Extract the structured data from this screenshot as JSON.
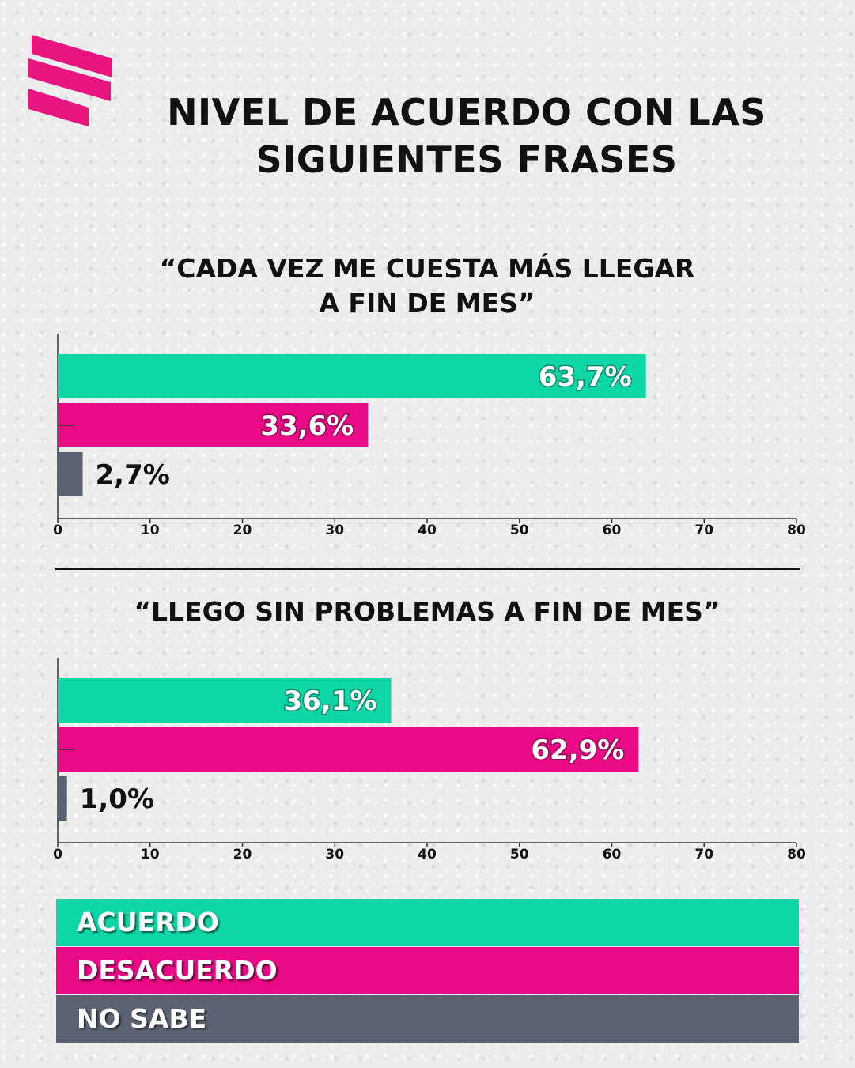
{
  "header": {
    "title_line1": "NIVEL DE ACUERDO CON LAS",
    "title_line2": "SIGUIENTES FRASES",
    "logo_icon": "stripes-logo-icon",
    "logo_color": "#e8157e"
  },
  "colors": {
    "acuerdo": "#0fd6a6",
    "desacuerdo": "#ea0a85",
    "no_sabe": "#5b6272"
  },
  "chart_data": [
    {
      "type": "bar",
      "orientation": "horizontal",
      "title": "“CADA VEZ ME CUESTA MÁS LLEGAR A FIN DE MES”",
      "title_line1": "“CADA VEZ ME CUESTA MÁS LLEGAR",
      "title_line2": "A FIN DE MES”",
      "categories": [
        "ACUERDO",
        "DESACUERDO",
        "NO SABE"
      ],
      "values": [
        63.7,
        33.6,
        2.7
      ],
      "labels": [
        "63,7%",
        "33,6%",
        "2,7%"
      ],
      "xlim": [
        0,
        80
      ],
      "xticks": [
        "0",
        "10",
        "20",
        "30",
        "40",
        "50",
        "60",
        "70",
        "80"
      ]
    },
    {
      "type": "bar",
      "orientation": "horizontal",
      "title": "“LLEGO SIN PROBLEMAS A FIN DE MES”",
      "categories": [
        "ACUERDO",
        "DESACUERDO",
        "NO SABE"
      ],
      "values": [
        36.1,
        62.9,
        1.0
      ],
      "labels": [
        "36,1%",
        "62,9%",
        "1,0%"
      ],
      "xlim": [
        0,
        80
      ],
      "xticks": [
        "0",
        "10",
        "20",
        "30",
        "40",
        "50",
        "60",
        "70",
        "80"
      ]
    }
  ],
  "legend": {
    "items": [
      {
        "label": "ACUERDO"
      },
      {
        "label": "DESACUERDO"
      },
      {
        "label": "NO SABE"
      }
    ]
  }
}
